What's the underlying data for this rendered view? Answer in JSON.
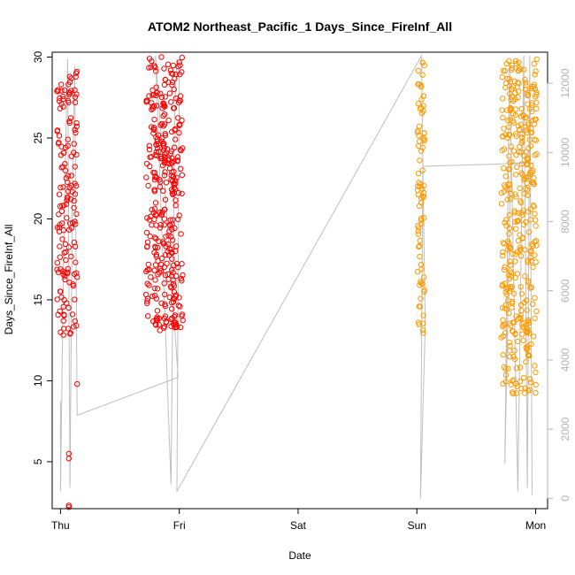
{
  "chart_data": {
    "type": "scatter",
    "title": "ATOM2 Northeast_Pacific_1 Days_Since_FireInf_All",
    "xlabel": "Date",
    "ylabel": "Days_Since_FireInf_All",
    "x_ticks": [
      {
        "x": 0,
        "label": "Thu"
      },
      {
        "x": 1,
        "label": "Fri"
      },
      {
        "x": 2,
        "label": "Sat"
      },
      {
        "x": 3,
        "label": "Sun"
      },
      {
        "x": 4,
        "label": "Mon"
      }
    ],
    "xlim": [
      -0.07,
      4.1
    ],
    "ylim": [
      2.1,
      30.3
    ],
    "y_ticks": [
      5,
      10,
      15,
      20,
      25,
      30
    ],
    "y2_ticks": [
      0,
      2000,
      4000,
      6000,
      8000,
      10000,
      12000
    ],
    "y2lim": [
      -300,
      12900
    ],
    "grid": false,
    "colors": {
      "red": "#ff0000",
      "orange": "#ff9900",
      "line": "#bebebe",
      "right_axis": "#b3b3b3",
      "axis": "#000000"
    },
    "clusters": [
      {
        "color": "red",
        "x_centers": [
          0.0,
          0.05,
          0.11
        ],
        "x_spread": 0.03,
        "y_min": 12.8,
        "y_max": 29.2,
        "count": 150,
        "outliers": [
          {
            "x": 0.0,
            "y": 13.0
          },
          {
            "x": 0.0,
            "y": 16.9
          },
          {
            "x": 0.07,
            "y": 2.2
          },
          {
            "x": 0.07,
            "y": 2.3
          },
          {
            "x": 0.07,
            "y": 5.2
          },
          {
            "x": 0.07,
            "y": 5.5
          },
          {
            "x": 0.14,
            "y": 9.8
          }
        ]
      },
      {
        "color": "red",
        "x_centers": [
          0.77,
          0.84,
          0.92,
          0.98
        ],
        "x_spread": 0.05,
        "y_min": 13.1,
        "y_max": 30.0,
        "count": 350,
        "outliers": [
          {
            "x": 0.75,
            "y": 29.9
          },
          {
            "x": 0.85,
            "y": 30.0
          }
        ]
      },
      {
        "color": "orange",
        "x_centers": [
          3.02,
          3.05
        ],
        "x_spread": 0.015,
        "y_min": 12.9,
        "y_max": 29.9,
        "count": 80,
        "outliers": []
      },
      {
        "color": "orange",
        "x_centers": [
          3.75,
          3.82,
          3.9,
          3.97
        ],
        "x_spread": 0.04,
        "y_min": 9.2,
        "y_max": 30.0,
        "count": 380,
        "outliers": [
          {
            "x": 3.81,
            "y": 9.2
          },
          {
            "x": 3.96,
            "y": 9.9
          }
        ]
      }
    ],
    "secondary_line_y2": [
      {
        "x": 0.0,
        "y2": 2800
      },
      {
        "x": 0.0,
        "y2": 200
      },
      {
        "x": 0.03,
        "y2": 8000
      },
      {
        "x": 0.06,
        "y2": 12700
      },
      {
        "x": 0.08,
        "y2": 300
      },
      {
        "x": 0.1,
        "y2": 9000
      },
      {
        "x": 0.12,
        "y2": 12500
      },
      {
        "x": 0.14,
        "y2": 2400
      },
      {
        "x": 0.99,
        "y2": 3500
      },
      {
        "x": 0.8,
        "y2": 12800
      },
      {
        "x": 0.93,
        "y2": 400
      },
      {
        "x": 0.96,
        "y2": 11000
      },
      {
        "x": 0.98,
        "y2": 12700
      },
      {
        "x": 1.0,
        "y2": 12300
      },
      {
        "x": 0.98,
        "y2": 200
      },
      {
        "x": 3.04,
        "y2": 12800
      },
      {
        "x": 3.05,
        "y2": 9600
      },
      {
        "x": 3.03,
        "y2": 0
      },
      {
        "x": 3.07,
        "y2": 5000
      },
      {
        "x": 3.05,
        "y2": 9600
      },
      {
        "x": 3.99,
        "y2": 9700
      },
      {
        "x": 3.79,
        "y2": 9700
      },
      {
        "x": 3.74,
        "y2": 1000
      },
      {
        "x": 3.78,
        "y2": 12500
      },
      {
        "x": 3.85,
        "y2": 200
      },
      {
        "x": 3.9,
        "y2": 12800
      },
      {
        "x": 3.93,
        "y2": 300
      },
      {
        "x": 3.95,
        "y2": 12800
      },
      {
        "x": 3.97,
        "y2": 100
      }
    ]
  },
  "chart_text": {
    "title": "ATOM2 Northeast_Pacific_1 Days_Since_FireInf_All",
    "xlabel": "Date",
    "ylabel": "Days_Since_FireInf_All"
  }
}
